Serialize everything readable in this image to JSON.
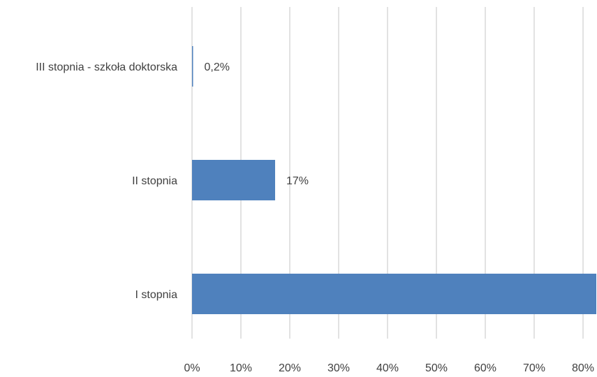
{
  "chart_data": {
    "type": "bar",
    "orientation": "horizontal",
    "categories": [
      "III stopnia - szkoła doktorska",
      "II stopnia",
      "I stopnia"
    ],
    "values": [
      0.2,
      17,
      83
    ],
    "data_labels": [
      "0,2%",
      "17%",
      null
    ],
    "xlim": [
      0,
      80
    ],
    "xticks": [
      0,
      10,
      20,
      30,
      40,
      50,
      60,
      70,
      80
    ],
    "xtick_labels": [
      "0%",
      "10%",
      "20%",
      "30%",
      "40%",
      "50%",
      "60%",
      "70%",
      "80%"
    ],
    "grid": true,
    "bar_color": "#4f81bd",
    "grid_color": "#d9d9d9"
  }
}
